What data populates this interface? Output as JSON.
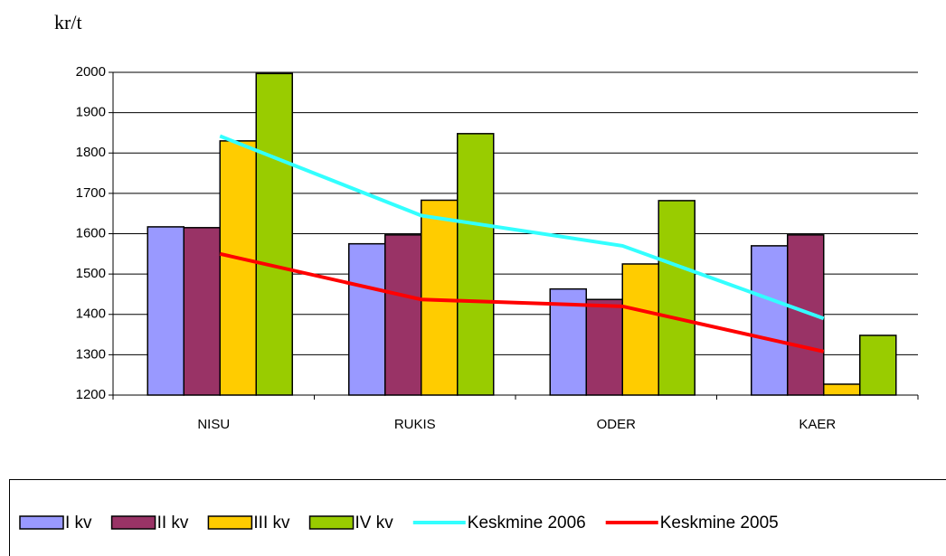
{
  "chart_data": {
    "type": "bar",
    "y_label": "kr/t",
    "categories": [
      "NISU",
      "RUKIS",
      "ODER",
      "KAER"
    ],
    "series": [
      {
        "name": "I kv",
        "type": "bar",
        "color": "#9999ff",
        "values": [
          1617,
          1575,
          1463,
          1570
        ]
      },
      {
        "name": "II kv",
        "type": "bar",
        "color": "#993366",
        "values": [
          1615,
          1597,
          1437,
          1597
        ]
      },
      {
        "name": "III kv",
        "type": "bar",
        "color": "#ffcc00",
        "values": [
          1830,
          1683,
          1525,
          1227
        ]
      },
      {
        "name": "IV kv",
        "type": "bar",
        "color": "#99cc00",
        "values": [
          1997,
          1848,
          1682,
          1348
        ]
      },
      {
        "name": "Keskmine 2006",
        "type": "line",
        "color": "#33ffff",
        "values": [
          1842,
          1645,
          1570,
          1390
        ]
      },
      {
        "name": "Keskmine 2005",
        "type": "line",
        "color": "#ff0000",
        "values": [
          1550,
          1437,
          1420,
          1308
        ]
      }
    ],
    "ylim": [
      1200,
      2000
    ],
    "yticks": [
      1200,
      1300,
      1400,
      1500,
      1600,
      1700,
      1800,
      1900,
      2000
    ],
    "grid": true,
    "legend": "bottom"
  }
}
